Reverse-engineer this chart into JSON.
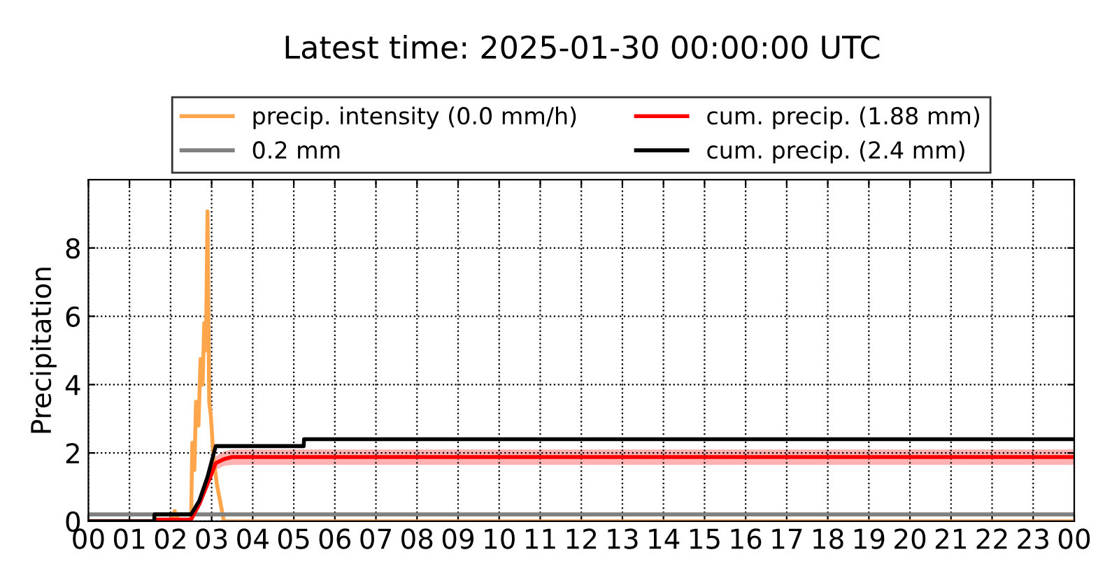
{
  "chart_data": {
    "type": "line",
    "title": "Latest time: 2025-01-30 00:00:00 UTC",
    "ylabel": "Precipitation",
    "xlim": [
      0,
      24
    ],
    "ylim": [
      0,
      10
    ],
    "yticks": [
      0,
      2,
      4,
      6,
      8
    ],
    "xticks": [
      {
        "value": 0,
        "label": "00"
      },
      {
        "value": 1,
        "label": "01"
      },
      {
        "value": 2,
        "label": "02"
      },
      {
        "value": 3,
        "label": "03"
      },
      {
        "value": 4,
        "label": "04"
      },
      {
        "value": 5,
        "label": "05"
      },
      {
        "value": 6,
        "label": "06"
      },
      {
        "value": 7,
        "label": "07"
      },
      {
        "value": 8,
        "label": "08"
      },
      {
        "value": 9,
        "label": "09"
      },
      {
        "value": 10,
        "label": "10"
      },
      {
        "value": 11,
        "label": "11"
      },
      {
        "value": 12,
        "label": "12"
      },
      {
        "value": 13,
        "label": "13"
      },
      {
        "value": 14,
        "label": "14"
      },
      {
        "value": 15,
        "label": "15"
      },
      {
        "value": 16,
        "label": "16"
      },
      {
        "value": 17,
        "label": "17"
      },
      {
        "value": 18,
        "label": "18"
      },
      {
        "value": 19,
        "label": "19"
      },
      {
        "value": 20,
        "label": "20"
      },
      {
        "value": 21,
        "label": "21"
      },
      {
        "value": 22,
        "label": "22"
      },
      {
        "value": 23,
        "label": "23"
      },
      {
        "value": 24,
        "label": "00"
      }
    ],
    "grid": true,
    "legend": "top",
    "line_style": "solid",
    "marker": "none",
    "series": [
      {
        "name": "precip. intensity (0.0 mm/h)",
        "color": "#ffa64d",
        "x": [
          0,
          2.0,
          2.1,
          2.2,
          2.5,
          2.53,
          2.58,
          2.62,
          2.68,
          2.73,
          2.78,
          2.82,
          2.86,
          2.9,
          2.94,
          2.98,
          3.05,
          3.13,
          3.3,
          24
        ],
        "values": [
          0,
          0,
          0.3,
          0,
          0,
          2.3,
          1.5,
          3.5,
          2.8,
          4.75,
          4.0,
          5.8,
          5.0,
          9.07,
          3.5,
          3.1,
          1.8,
          1.07,
          0,
          0
        ]
      },
      {
        "name": "0.2 mm",
        "color": "#808080",
        "x": [
          0,
          24
        ],
        "values": [
          0.2,
          0.2
        ]
      },
      {
        "name": "cum. precip. (1.88 mm)",
        "color": "#ff0000",
        "x": [
          0,
          1.65,
          1.66,
          2.5,
          2.7,
          2.9,
          3.1,
          3.3,
          3.5,
          24
        ],
        "values": [
          0,
          0,
          0.05,
          0.05,
          0.5,
          1.1,
          1.7,
          1.82,
          1.88,
          1.88
        ],
        "lower": [
          0,
          0,
          0.04,
          0.04,
          0.4,
          0.95,
          1.5,
          1.62,
          1.65,
          1.65
        ],
        "upper": [
          0,
          0,
          0.06,
          0.06,
          0.6,
          1.25,
          1.9,
          2.05,
          2.1,
          2.1
        ]
      },
      {
        "name": "cum. precip. (2.4 mm)",
        "color": "#000000",
        "x": [
          0,
          1.6,
          1.61,
          2.5,
          2.7,
          2.9,
          3.1,
          5.24,
          5.25,
          24
        ],
        "values": [
          0,
          0,
          0.2,
          0.2,
          0.6,
          1.3,
          2.2,
          2.2,
          2.4,
          2.4
        ]
      }
    ]
  }
}
